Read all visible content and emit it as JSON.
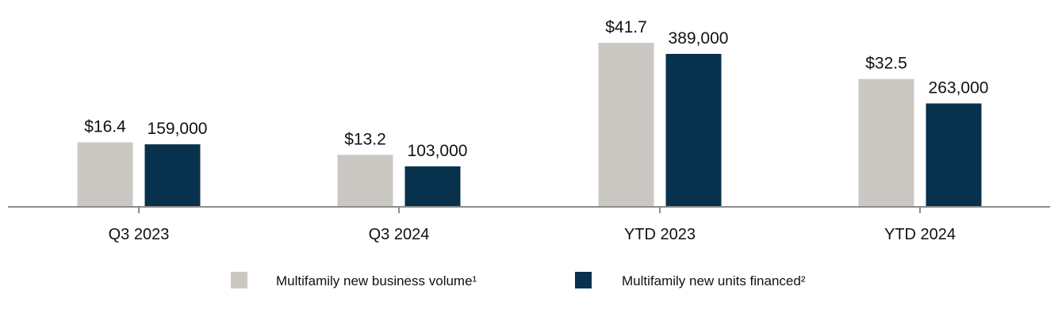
{
  "chart_data": {
    "type": "bar",
    "categories": [
      "Q3 2023",
      "Q3 2024",
      "YTD 2023",
      "YTD 2024"
    ],
    "series": [
      {
        "name": "Multifamily new business volume¹",
        "values": [
          16.4,
          13.2,
          41.7,
          32.5
        ],
        "labels": [
          "$16.4",
          "$13.2",
          "$41.7",
          "$32.5"
        ],
        "color": "#cbc8c3"
      },
      {
        "name": "Multifamily new units financed²",
        "values": [
          159000,
          103000,
          389000,
          263000
        ],
        "labels": [
          "159,000",
          "103,000",
          "389,000",
          "263,000"
        ],
        "color": "#08314d"
      }
    ],
    "axis_color": "#8c8c8c",
    "legend_position": "bottom-center",
    "grid": false
  }
}
